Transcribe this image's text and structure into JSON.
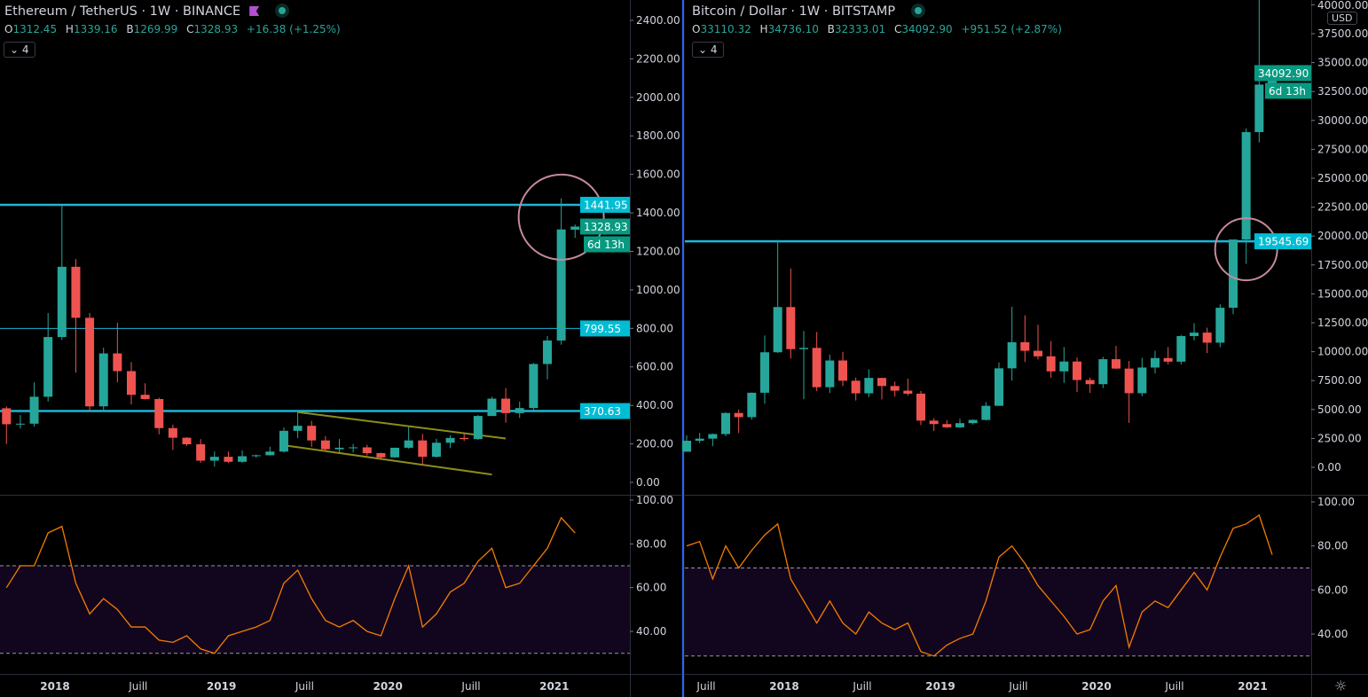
{
  "colors": {
    "up": "#26a69a",
    "down": "#ef5350",
    "level": "#1fb5d6",
    "level_label": "#00bcd4",
    "close_label": "#089981",
    "rsi": "#f57c00",
    "rsi_band": "#12061e",
    "trend": "#8c8c1a",
    "circle": "#c48a9a"
  },
  "left": {
    "title": "Ethereum / TetherUS · 1W · BINANCE",
    "flag_icon": "purple-flag",
    "status_icon": "market-open-dot",
    "ohlc": {
      "o_label": "O",
      "o": "1312.45",
      "h_label": "H",
      "h": "1339.16",
      "l_label": "B",
      "l": "1269.99",
      "c_label": "C",
      "c": "1328.93",
      "change": "+16.38 (+1.25%)"
    },
    "indicators_toggle": "4",
    "price_ticks": [
      "0.00",
      "200.00",
      "400.00",
      "600.00",
      "800.00",
      "1000.00",
      "1200.00",
      "1400.00",
      "1600.00",
      "1800.00",
      "2000.00",
      "2200.00",
      "2400.00"
    ],
    "rsi_ticks": [
      "40.00",
      "60.00",
      "80.00",
      "100.00"
    ],
    "time_ticks": [
      {
        "label": "2018",
        "date": "2018-01",
        "bold": true
      },
      {
        "label": "Juill",
        "date": "2018-07",
        "bold": false
      },
      {
        "label": "2019",
        "date": "2019-01",
        "bold": true
      },
      {
        "label": "Juill",
        "date": "2019-07",
        "bold": false
      },
      {
        "label": "2020",
        "date": "2020-01",
        "bold": true
      },
      {
        "label": "Juill",
        "date": "2020-07",
        "bold": false
      },
      {
        "label": "2021",
        "date": "2021-01",
        "bold": true
      }
    ],
    "levels": [
      {
        "price": 1441.95,
        "label": "1441.95",
        "thick": true
      },
      {
        "price": 799.55,
        "label": "799.55",
        "thick": false
      },
      {
        "price": 370.63,
        "label": "370.63",
        "thick": true
      }
    ],
    "close": {
      "price": 1328.93,
      "label": "1328.93",
      "countdown": "6d 13h"
    },
    "trendlines": [
      [
        [
          "2019-06",
          365
        ],
        [
          "2020-09",
          228
        ]
      ],
      [
        [
          "2019-05",
          193
        ],
        [
          "2020-08",
          41
        ]
      ]
    ],
    "circle": {
      "date": "2021-01",
      "price": 1378
    }
  },
  "right": {
    "title": "Bitcoin / Dollar · 1W · BITSTAMP",
    "status_icon": "market-open-dot",
    "ohlc": {
      "o_label": "O",
      "o": "33110.32",
      "h_label": "H",
      "h": "34736.10",
      "l_label": "B",
      "l": "32333.01",
      "c_label": "C",
      "c": "34092.90",
      "change": "+951.52 (+2.87%)"
    },
    "indicators_toggle": "4",
    "currency": "USD",
    "price_ticks": [
      "0.00",
      "2500.00",
      "5000.00",
      "7500.00",
      "10000.00",
      "12500.00",
      "15000.00",
      "17500.00",
      "20000.00",
      "22500.00",
      "25000.00",
      "27500.00",
      "30000.00",
      "32500.00",
      "35000.00",
      "37500.00",
      "40000.00"
    ],
    "rsi_ticks": [
      "40.00",
      "60.00",
      "80.00",
      "100.00"
    ],
    "time_ticks": [
      {
        "label": "Juill",
        "date": "2017-07",
        "bold": false
      },
      {
        "label": "2018",
        "date": "2018-01",
        "bold": true
      },
      {
        "label": "Juill",
        "date": "2018-07",
        "bold": false
      },
      {
        "label": "2019",
        "date": "2019-01",
        "bold": true
      },
      {
        "label": "Juill",
        "date": "2019-07",
        "bold": false
      },
      {
        "label": "2020",
        "date": "2020-01",
        "bold": true
      },
      {
        "label": "Juill",
        "date": "2020-07",
        "bold": false
      },
      {
        "label": "2021",
        "date": "2021-01",
        "bold": true
      }
    ],
    "levels": [
      {
        "price": 19545.69,
        "label": "19545.69",
        "thick": true
      }
    ],
    "close": {
      "price": 34092.9,
      "label": "34092.90",
      "countdown": "6d 13h"
    },
    "circle": {
      "date": "2020-12",
      "price": 18860
    }
  },
  "chart_data": [
    {
      "type": "candlestick",
      "name": "Ethereum / TetherUS",
      "interval": "1W",
      "rsi_overbought": 70,
      "rsi_oversold": 30,
      "ylim": [
        0,
        2400
      ],
      "rsi_ylim": [
        0,
        100
      ],
      "candles": [
        [
          "2017-09",
          385,
          395,
          200,
          302
        ],
        [
          "2017-10",
          302,
          350,
          280,
          305
        ],
        [
          "2017-11",
          305,
          520,
          290,
          445
        ],
        [
          "2017-12",
          445,
          880,
          420,
          755
        ],
        [
          "2018-01",
          755,
          1440,
          740,
          1120
        ],
        [
          "2018-02",
          1120,
          1160,
          570,
          855
        ],
        [
          "2018-03",
          855,
          880,
          370,
          395
        ],
        [
          "2018-04",
          395,
          700,
          365,
          670
        ],
        [
          "2018-05",
          670,
          830,
          520,
          578
        ],
        [
          "2018-06",
          578,
          625,
          405,
          455
        ],
        [
          "2018-07",
          455,
          515,
          430,
          433
        ],
        [
          "2018-08",
          433,
          440,
          250,
          282
        ],
        [
          "2018-09",
          282,
          300,
          168,
          232
        ],
        [
          "2018-10",
          232,
          235,
          190,
          198
        ],
        [
          "2018-11",
          198,
          225,
          102,
          113
        ],
        [
          "2018-12",
          113,
          160,
          82,
          133
        ],
        [
          "2019-01",
          133,
          160,
          100,
          107
        ],
        [
          "2019-02",
          107,
          166,
          102,
          136
        ],
        [
          "2019-03",
          136,
          145,
          128,
          141
        ],
        [
          "2019-04",
          141,
          185,
          140,
          160
        ],
        [
          "2019-05",
          160,
          285,
          155,
          268
        ],
        [
          "2019-06",
          268,
          365,
          230,
          294
        ],
        [
          "2019-07",
          294,
          320,
          185,
          218
        ],
        [
          "2019-08",
          218,
          240,
          162,
          172
        ],
        [
          "2019-09",
          172,
          225,
          155,
          180
        ],
        [
          "2019-10",
          180,
          200,
          155,
          182
        ],
        [
          "2019-11",
          182,
          195,
          140,
          152
        ],
        [
          "2019-12",
          152,
          155,
          117,
          130
        ],
        [
          "2020-01",
          130,
          180,
          127,
          180
        ],
        [
          "2020-02",
          180,
          288,
          175,
          218
        ],
        [
          "2020-03",
          218,
          252,
          90,
          133
        ],
        [
          "2020-04",
          133,
          227,
          128,
          206
        ],
        [
          "2020-05",
          206,
          245,
          178,
          231
        ],
        [
          "2020-06",
          231,
          255,
          215,
          225
        ],
        [
          "2020-07",
          225,
          350,
          220,
          345
        ],
        [
          "2020-08",
          345,
          445,
          345,
          435
        ],
        [
          "2020-09",
          435,
          490,
          310,
          360
        ],
        [
          "2020-10",
          360,
          420,
          335,
          386
        ],
        [
          "2020-11",
          386,
          620,
          375,
          615
        ],
        [
          "2020-12",
          615,
          760,
          535,
          737
        ],
        [
          "2021-01",
          737,
          1475,
          715,
          1314
        ],
        [
          "2021-02",
          1312.45,
          1339.16,
          1269.99,
          1328.93
        ]
      ],
      "rsi": [
        [
          "2017-09",
          60
        ],
        [
          "2017-10",
          70
        ],
        [
          "2017-11",
          70
        ],
        [
          "2017-12",
          85
        ],
        [
          "2018-01",
          88
        ],
        [
          "2018-02",
          62
        ],
        [
          "2018-03",
          48
        ],
        [
          "2018-04",
          55
        ],
        [
          "2018-05",
          50
        ],
        [
          "2018-06",
          42
        ],
        [
          "2018-07",
          42
        ],
        [
          "2018-08",
          36
        ],
        [
          "2018-09",
          35
        ],
        [
          "2018-10",
          38
        ],
        [
          "2018-11",
          32
        ],
        [
          "2018-12",
          30
        ],
        [
          "2019-01",
          38
        ],
        [
          "2019-02",
          40
        ],
        [
          "2019-03",
          42
        ],
        [
          "2019-04",
          45
        ],
        [
          "2019-05",
          62
        ],
        [
          "2019-06",
          68
        ],
        [
          "2019-07",
          55
        ],
        [
          "2019-08",
          45
        ],
        [
          "2019-09",
          42
        ],
        [
          "2019-10",
          45
        ],
        [
          "2019-11",
          40
        ],
        [
          "2019-12",
          38
        ],
        [
          "2020-01",
          55
        ],
        [
          "2020-02",
          70
        ],
        [
          "2020-03",
          42
        ],
        [
          "2020-04",
          48
        ],
        [
          "2020-05",
          58
        ],
        [
          "2020-06",
          62
        ],
        [
          "2020-07",
          72
        ],
        [
          "2020-08",
          78
        ],
        [
          "2020-09",
          60
        ],
        [
          "2020-10",
          62
        ],
        [
          "2020-11",
          70
        ],
        [
          "2020-12",
          78
        ],
        [
          "2021-01",
          92
        ],
        [
          "2021-02",
          85
        ]
      ]
    },
    {
      "type": "candlestick",
      "name": "Bitcoin / Dollar",
      "interval": "1W",
      "rsi_overbought": 70,
      "rsi_oversold": 30,
      "ylim": [
        0,
        40000
      ],
      "rsi_ylim": [
        0,
        100
      ],
      "candles": [
        [
          "2017-05",
          1350,
          2780,
          1350,
          2300
        ],
        [
          "2017-06",
          2300,
          2980,
          2100,
          2480
        ],
        [
          "2017-07",
          2480,
          2920,
          1830,
          2875
        ],
        [
          "2017-08",
          2875,
          4750,
          2680,
          4700
        ],
        [
          "2017-09",
          4700,
          5000,
          2970,
          4340
        ],
        [
          "2017-10",
          4340,
          6470,
          4110,
          6450
        ],
        [
          "2017-11",
          6450,
          11400,
          5500,
          9950
        ],
        [
          "2017-12",
          9950,
          19666,
          9900,
          13860
        ],
        [
          "2018-01",
          13860,
          17200,
          9400,
          10220
        ],
        [
          "2018-02",
          10220,
          11800,
          5900,
          10330
        ],
        [
          "2018-03",
          10330,
          11700,
          6600,
          6930
        ],
        [
          "2018-04",
          6930,
          9750,
          6430,
          9240
        ],
        [
          "2018-05",
          9240,
          9990,
          7030,
          7490
        ],
        [
          "2018-06",
          7490,
          7760,
          5780,
          6400
        ],
        [
          "2018-07",
          6400,
          8490,
          6070,
          7730
        ],
        [
          "2018-08",
          7730,
          7750,
          5880,
          7030
        ],
        [
          "2018-09",
          7030,
          7410,
          6120,
          6630
        ],
        [
          "2018-10",
          6630,
          7680,
          6200,
          6370
        ],
        [
          "2018-11",
          6370,
          6600,
          3650,
          4040
        ],
        [
          "2018-12",
          4040,
          4240,
          3150,
          3740
        ],
        [
          "2019-01",
          3740,
          4070,
          3400,
          3460
        ],
        [
          "2019-02",
          3460,
          4200,
          3400,
          3820
        ],
        [
          "2019-03",
          3820,
          4140,
          3700,
          4100
        ],
        [
          "2019-04",
          4100,
          5640,
          4050,
          5320
        ],
        [
          "2019-05",
          5320,
          9070,
          5320,
          8560
        ],
        [
          "2019-06",
          8560,
          13880,
          7500,
          10820
        ],
        [
          "2019-07",
          10820,
          13150,
          9100,
          10080
        ],
        [
          "2019-08",
          10080,
          12330,
          9330,
          9600
        ],
        [
          "2019-09",
          9600,
          10920,
          7750,
          8300
        ],
        [
          "2019-10",
          8300,
          10400,
          7300,
          9150
        ],
        [
          "2019-11",
          9150,
          9500,
          6520,
          7550
        ],
        [
          "2019-12",
          7550,
          7750,
          6430,
          7190
        ],
        [
          "2020-01",
          7190,
          9550,
          6860,
          9350
        ],
        [
          "2020-02",
          9350,
          10500,
          8500,
          8540
        ],
        [
          "2020-03",
          8540,
          9190,
          3850,
          6410
        ],
        [
          "2020-04",
          6410,
          9470,
          6150,
          8630
        ],
        [
          "2020-05",
          8630,
          10070,
          8120,
          9450
        ],
        [
          "2020-06",
          9450,
          10400,
          8900,
          9140
        ],
        [
          "2020-07",
          9140,
          11450,
          8900,
          11350
        ],
        [
          "2020-08",
          11350,
          12470,
          10990,
          11650
        ],
        [
          "2020-09",
          11650,
          12080,
          9880,
          10780
        ],
        [
          "2020-10",
          10780,
          14100,
          10380,
          13800
        ],
        [
          "2020-11",
          13800,
          19700,
          13240,
          19700
        ],
        [
          "2020-12",
          19700,
          29300,
          17600,
          28990
        ],
        [
          "2021-01",
          28990,
          41950,
          28100,
          33100
        ],
        [
          "2021-02",
          33110.32,
          34736.1,
          32333.01,
          34092.9
        ]
      ],
      "rsi": [
        [
          "2017-05",
          80
        ],
        [
          "2017-06",
          82
        ],
        [
          "2017-07",
          65
        ],
        [
          "2017-08",
          80
        ],
        [
          "2017-09",
          70
        ],
        [
          "2017-10",
          78
        ],
        [
          "2017-11",
          85
        ],
        [
          "2017-12",
          90
        ],
        [
          "2018-01",
          65
        ],
        [
          "2018-02",
          55
        ],
        [
          "2018-03",
          45
        ],
        [
          "2018-04",
          55
        ],
        [
          "2018-05",
          45
        ],
        [
          "2018-06",
          40
        ],
        [
          "2018-07",
          50
        ],
        [
          "2018-08",
          45
        ],
        [
          "2018-09",
          42
        ],
        [
          "2018-10",
          45
        ],
        [
          "2018-11",
          32
        ],
        [
          "2018-12",
          30
        ],
        [
          "2019-01",
          35
        ],
        [
          "2019-02",
          38
        ],
        [
          "2019-03",
          40
        ],
        [
          "2019-04",
          55
        ],
        [
          "2019-05",
          75
        ],
        [
          "2019-06",
          80
        ],
        [
          "2019-07",
          72
        ],
        [
          "2019-08",
          62
        ],
        [
          "2019-09",
          55
        ],
        [
          "2019-10",
          48
        ],
        [
          "2019-11",
          40
        ],
        [
          "2019-12",
          42
        ],
        [
          "2020-01",
          55
        ],
        [
          "2020-02",
          62
        ],
        [
          "2020-03",
          34
        ],
        [
          "2020-04",
          50
        ],
        [
          "2020-05",
          55
        ],
        [
          "2020-06",
          52
        ],
        [
          "2020-07",
          60
        ],
        [
          "2020-08",
          68
        ],
        [
          "2020-09",
          60
        ],
        [
          "2020-10",
          75
        ],
        [
          "2020-11",
          88
        ],
        [
          "2020-12",
          90
        ],
        [
          "2021-01",
          94
        ],
        [
          "2021-02",
          76
        ]
      ]
    }
  ]
}
